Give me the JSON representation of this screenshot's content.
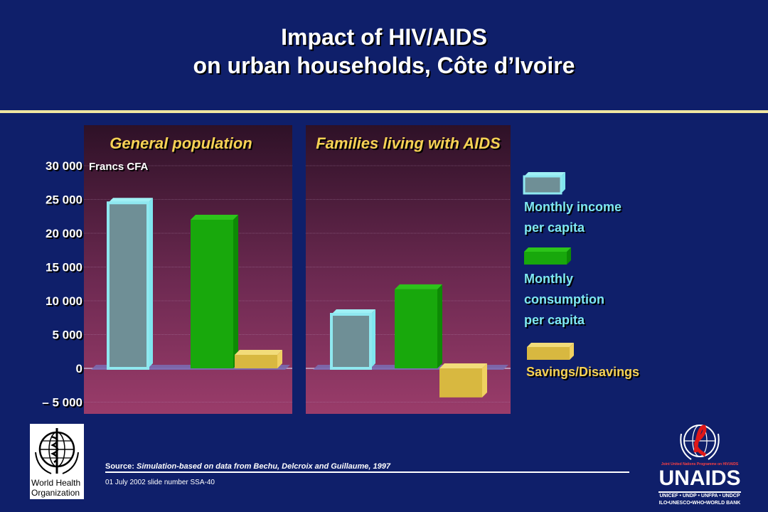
{
  "title": {
    "line1": "Impact of HIV/AIDS",
    "line2": "on urban households, Côte d’Ivoire"
  },
  "chart_data": {
    "type": "bar",
    "unit_label": "Francs CFA",
    "ylim": [
      -7000,
      36000
    ],
    "yticks": [
      {
        "value": 30000,
        "label": "30 000"
      },
      {
        "value": 25000,
        "label": "25 000"
      },
      {
        "value": 20000,
        "label": "20 000"
      },
      {
        "value": 15000,
        "label": "15 000"
      },
      {
        "value": 10000,
        "label": "10 000"
      },
      {
        "value": 5000,
        "label": "5 000"
      },
      {
        "value": 0,
        "label": "0"
      },
      {
        "value": -5000,
        "label": "– 5 000"
      }
    ],
    "grid": true,
    "panels": [
      {
        "title": "General population",
        "values": [
          24500,
          22000,
          2000
        ]
      },
      {
        "title": "Families living with AIDS",
        "values": [
          8000,
          11700,
          -4300
        ]
      }
    ],
    "series": [
      {
        "name": "Monthly income per capita",
        "color": "#6f8f96"
      },
      {
        "name": "Monthly consumption per capita",
        "color": "#1aa80c"
      },
      {
        "name": "Savings/Disavings",
        "color": "#d8b840"
      }
    ],
    "legend_position": "right"
  },
  "legend": {
    "income_line1": "Monthly income",
    "income_line2": "per capita",
    "consumption_line1": "Monthly",
    "consumption_line2": "consumption",
    "consumption_line3": "per capita",
    "savings": "Savings/Disavings"
  },
  "footer": {
    "source_label": "Source:",
    "source_text": "Simulation-based on data from Bechu, Delcroix and Guillaume, 1997",
    "slide_number": "01 July 2002 slide number SSA-40"
  },
  "logos": {
    "who_line1": "World Health",
    "who_line2": "Organization",
    "unaids_tagline": "Joint United Nations Programme on HIV/AIDS",
    "unaids_word": "UNAIDS",
    "unaids_sub1": "UNICEF • UNDP • UNFPA • UNDCP",
    "unaids_sub2": "ILO•UNESCO•WHO•WORLD BANK"
  },
  "colors": {
    "background": "#0f1f6a",
    "panel_top": "#3c1530",
    "panel_bottom": "#8a3560",
    "accent_rule": "#f0e6a0",
    "panel_title": "#f7d254",
    "legend_text": "#7ee8f2"
  }
}
